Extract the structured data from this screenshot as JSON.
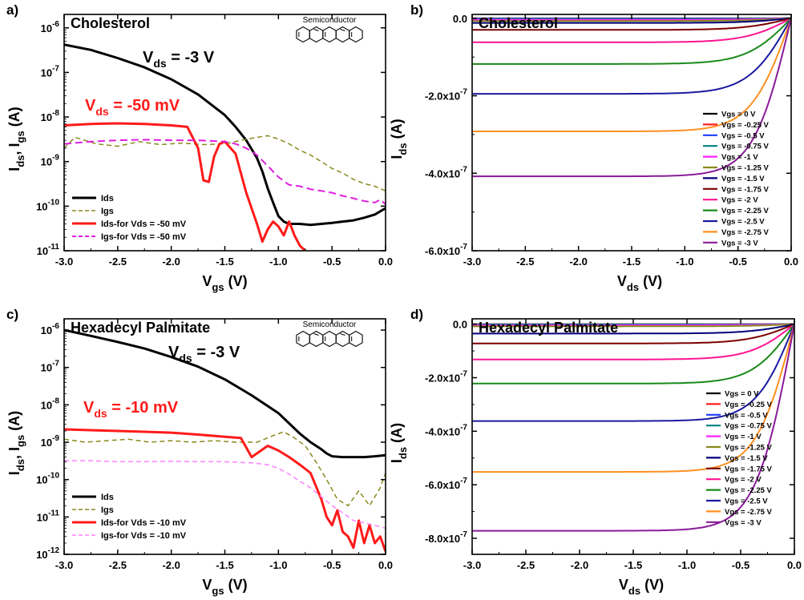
{
  "panels": [
    {
      "letter": "a)",
      "title": "Cholesterol",
      "semiconductor_label": "Semiconductor",
      "annotations": [
        {
          "text": "V",
          "sub": "ds",
          "rest": " = -3 V",
          "color": "#000000"
        },
        {
          "text": "V",
          "sub": "ds",
          "rest": " = -50 mV",
          "color": "#ff1a1a"
        }
      ],
      "xlabel": {
        "main": "V",
        "sub": "gs",
        "rest": " (V)"
      },
      "ylabel": {
        "a": "I",
        "asub": "ds",
        "b": ", I",
        "bsub": "gs",
        "rest": " (A)"
      }
    },
    {
      "letter": "b)",
      "title": "Cholesterol",
      "xlabel": {
        "main": "V",
        "sub": "ds",
        "rest": " (V)"
      },
      "ylabel": {
        "a": "I",
        "asub": "ds",
        "rest": " (A)"
      }
    },
    {
      "letter": "c)",
      "title": "Hexadecyl Palmitate",
      "semiconductor_label": "Semiconductor",
      "annotations": [
        {
          "text": "V",
          "sub": "ds",
          "rest": " = -3 V",
          "color": "#000000"
        },
        {
          "text": "V",
          "sub": "ds",
          "rest": " = -10  mV",
          "color": "#ff1a1a"
        }
      ],
      "xlabel": {
        "main": "V",
        "sub": "gs",
        "rest": " (V)"
      },
      "ylabel": {
        "a": "I",
        "asub": "ds",
        "b": ", I",
        "bsub": "gs",
        "rest": " (A)"
      }
    },
    {
      "letter": "d)",
      "title": "Hexadecyl Palmitate",
      "xlabel": {
        "main": "V",
        "sub": "ds",
        "rest": " (V)"
      },
      "ylabel": {
        "a": "I",
        "asub": "ds",
        "rest": " (A)"
      }
    }
  ],
  "chart_data": [
    {
      "panel": "a",
      "type": "line",
      "title": "Cholesterol",
      "xlabel": "Vgs (V)",
      "ylabel": "Ids, Igs (A)",
      "xlim": [
        -3.0,
        0.0
      ],
      "ylim": [
        1e-11,
        2e-06
      ],
      "yscale": "log",
      "x_ticks": [
        "-3.0",
        "-2.5",
        "-2.0",
        "-1.5",
        "-1.0",
        "-0.5",
        "0.0"
      ],
      "y_ticks": [
        {
          "value": 1e-11,
          "base": "10",
          "exp": "-11"
        },
        {
          "value": 1e-10,
          "base": "10",
          "exp": "-10"
        },
        {
          "value": 1e-09,
          "base": "10",
          "exp": "-9"
        },
        {
          "value": 1e-08,
          "base": "10",
          "exp": "-8"
        },
        {
          "value": 1e-07,
          "base": "10",
          "exp": "-7"
        },
        {
          "value": 1e-06,
          "base": "10",
          "exp": "-6"
        }
      ],
      "legend_position": "bottom-left",
      "series": [
        {
          "name": "Ids",
          "color": "#000000",
          "dash": "solid",
          "width": 3,
          "x": [
            -3.0,
            -2.75,
            -2.5,
            -2.25,
            -2.0,
            -1.75,
            -1.5,
            -1.4,
            -1.3,
            -1.2,
            -1.15,
            -1.1,
            -1.05,
            -1.0,
            -0.95,
            -0.9,
            -0.8,
            -0.7,
            -0.6,
            -0.5,
            -0.4,
            -0.3,
            -0.2,
            -0.1,
            0.0
          ],
          "y": [
            4.2e-07,
            3.2e-07,
            2.1e-07,
            1.3e-07,
            7e-08,
            3.2e-08,
            1.1e-08,
            6e-09,
            3e-09,
            1.2e-09,
            6e-10,
            2.5e-10,
            1.2e-10,
            6e-11,
            4.5e-11,
            4e-11,
            4e-11,
            3.8e-11,
            4e-11,
            4.2e-11,
            4.5e-11,
            4.8e-11,
            5.5e-11,
            6.5e-11,
            9e-11
          ]
        },
        {
          "name": "Igs",
          "color": "#8a8a1e",
          "dash": "dashed",
          "width": 1.5,
          "x": [
            -3.0,
            -2.9,
            -2.7,
            -2.5,
            -2.3,
            -2.1,
            -1.9,
            -1.7,
            -1.5,
            -1.35,
            -1.2,
            -1.1,
            -1.0,
            -0.9,
            -0.8,
            -0.7,
            -0.6,
            -0.5,
            -0.4,
            -0.3,
            -0.2,
            -0.1,
            0.0
          ],
          "y": [
            2e-09,
            3.5e-09,
            2.5e-09,
            2.2e-09,
            2.8e-09,
            2.4e-09,
            2.6e-09,
            2.4e-09,
            2.5e-09,
            3e-09,
            3.5e-09,
            3.8e-09,
            3.2e-09,
            2.5e-09,
            1.8e-09,
            1.4e-09,
            1e-09,
            7e-10,
            5.5e-10,
            4e-10,
            3.2e-10,
            2.8e-10,
            2.2e-10
          ]
        },
        {
          "name": "Ids-for Vds = -50 mV",
          "color": "#ff1a1a",
          "dash": "solid",
          "width": 3,
          "x": [
            -3.0,
            -2.75,
            -2.5,
            -2.25,
            -2.0,
            -1.85,
            -1.75,
            -1.7,
            -1.65,
            -1.6,
            -1.55,
            -1.5,
            -1.4,
            -1.3,
            -1.2,
            -1.15,
            -1.1,
            -1.05,
            -1.0,
            -0.95,
            -0.9,
            -0.85,
            -0.8,
            -0.75
          ],
          "y": [
            6.5e-09,
            7e-09,
            7.2e-09,
            7e-09,
            6.5e-09,
            6e-09,
            2e-09,
            3.8e-10,
            3.5e-10,
            1.3e-09,
            2.5e-09,
            2.8e-09,
            1.5e-09,
            2e-10,
            4e-11,
            1.6e-11,
            3e-11,
            4.5e-11,
            3.5e-11,
            2.2e-11,
            4.5e-11,
            2.2e-11,
            1.3e-11,
            1e-11
          ]
        },
        {
          "name": "Igs-for Vds = -50 mV",
          "color": "#e020e0",
          "dash": "dashed",
          "width": 2,
          "x": [
            -3.0,
            -2.75,
            -2.5,
            -2.25,
            -2.0,
            -1.75,
            -1.5,
            -1.4,
            -1.3,
            -1.2,
            -1.1,
            -1.0,
            -0.9,
            -0.8,
            -0.7,
            -0.6,
            -0.5,
            -0.4,
            -0.3,
            -0.2,
            -0.1,
            -0.05,
            0.0
          ],
          "y": [
            2.5e-09,
            2.8e-09,
            3e-09,
            3.1e-09,
            3e-09,
            3e-09,
            2.8e-09,
            2.5e-09,
            2e-09,
            1.4e-09,
            8e-10,
            4.5e-10,
            3e-10,
            2.8e-10,
            2.4e-10,
            2.2e-10,
            2e-10,
            1.7e-10,
            1.5e-10,
            1.3e-10,
            1.2e-10,
            1.4e-10,
            1.1e-10
          ]
        }
      ]
    },
    {
      "panel": "b",
      "type": "line",
      "title": "Cholesterol",
      "xlabel": "Vds (V)",
      "ylabel": "Ids (A)",
      "xlim": [
        -3.0,
        0.0
      ],
      "ylim": [
        -6e-07,
        1e-08
      ],
      "x_ticks": [
        "-3.0",
        "-2.5",
        "-2.0",
        "-1.5",
        "-1.0",
        "-0.5",
        "0.0"
      ],
      "y_ticks": [
        {
          "value": 0.0,
          "label": "0.0"
        },
        {
          "value": -2e-07,
          "label": "-2.0x10",
          "exp": "-7"
        },
        {
          "value": -4e-07,
          "label": "-4.0x10",
          "exp": "-7"
        },
        {
          "value": -6e-07,
          "label": "-6.0x10",
          "exp": "-7"
        }
      ],
      "legend_position": "right",
      "vgs_series": [
        {
          "name": "Vgs = 0 V",
          "color": "#000000",
          "isat": -2e-10
        },
        {
          "name": "Vgs = -0.25 V",
          "color": "#ff2020",
          "isat": -5e-10
        },
        {
          "name": "Vgs = -0.5 V",
          "color": "#1e3cff",
          "isat": -1e-09
        },
        {
          "name": "Vgs = -0.75 V",
          "color": "#008080",
          "isat": -2e-09
        },
        {
          "name": "Vgs = -1 V",
          "color": "#ff20ff",
          "isat": -4e-09
        },
        {
          "name": "Vgs = -1.25 V",
          "color": "#8a8a1e",
          "isat": -7e-09
        },
        {
          "name": "Vgs = -1.5 V",
          "color": "#00007a",
          "isat": -1.2e-08
        },
        {
          "name": "Vgs = -1.75 V",
          "color": "#7a0000",
          "isat": -3e-08
        },
        {
          "name": "Vgs = -2 V",
          "color": "#ff1493",
          "isat": -6.2e-08
        },
        {
          "name": "Vgs = -2.25 V",
          "color": "#1a8a1a",
          "isat": -1.18e-07
        },
        {
          "name": "Vgs = -2.5 V",
          "color": "#1a1aa0",
          "isat": -1.95e-07
        },
        {
          "name": "Vgs = -2.75 V",
          "color": "#ff9020",
          "isat": -2.92e-07
        },
        {
          "name": "Vgs = -3 V",
          "color": "#8a1a9a",
          "isat": -4.08e-07
        }
      ]
    },
    {
      "panel": "c",
      "type": "line",
      "title": "Hexadecyl Palmitate",
      "xlabel": "Vgs (V)",
      "ylabel": "Ids, Igs (A)",
      "xlim": [
        -3.0,
        0.0
      ],
      "ylim": [
        1e-12,
        2e-06
      ],
      "yscale": "log",
      "x_ticks": [
        "-3.0",
        "-2.5",
        "-2.0",
        "-1.5",
        "-1.0",
        "-0.5",
        "0.0"
      ],
      "y_ticks": [
        {
          "value": 1e-12,
          "base": "10",
          "exp": "-12"
        },
        {
          "value": 1e-11,
          "base": "10",
          "exp": "-11"
        },
        {
          "value": 1e-10,
          "base": "10",
          "exp": "-10"
        },
        {
          "value": 1e-09,
          "base": "10",
          "exp": "-9"
        },
        {
          "value": 1e-08,
          "base": "10",
          "exp": "-8"
        },
        {
          "value": 1e-07,
          "base": "10",
          "exp": "-7"
        },
        {
          "value": 1e-06,
          "base": "10",
          "exp": "-6"
        }
      ],
      "legend_position": "bottom-left",
      "series": [
        {
          "name": "Ids",
          "color": "#000000",
          "dash": "solid",
          "width": 3,
          "x": [
            -3.0,
            -2.75,
            -2.5,
            -2.25,
            -2.0,
            -1.75,
            -1.5,
            -1.25,
            -1.0,
            -0.9,
            -0.8,
            -0.7,
            -0.6,
            -0.55,
            -0.5,
            -0.4,
            -0.3,
            -0.2,
            -0.1,
            0.0
          ],
          "y": [
            1e-06,
            7e-07,
            4.8e-07,
            3.2e-07,
            1.9e-07,
            1.05e-07,
            4.8e-08,
            1.8e-08,
            6e-09,
            3.2e-09,
            1.7e-09,
            1e-09,
            6.5e-10,
            5e-10,
            4.2e-10,
            4e-10,
            4e-10,
            4e-10,
            4.2e-10,
            4.5e-10
          ]
        },
        {
          "name": "Igs",
          "color": "#8a8a1e",
          "dash": "dashed",
          "width": 1.5,
          "x": [
            -3.0,
            -2.8,
            -2.6,
            -2.4,
            -2.2,
            -2.0,
            -1.8,
            -1.6,
            -1.4,
            -1.2,
            -1.05,
            -0.95,
            -0.85,
            -0.75,
            -0.65,
            -0.55,
            -0.45,
            -0.35,
            -0.25,
            -0.15,
            -0.05,
            0.0
          ],
          "y": [
            1.2e-09,
            1e-09,
            1.1e-09,
            1.2e-09,
            1e-09,
            1.1e-09,
            1e-09,
            1.1e-09,
            1e-09,
            1e-09,
            1.5e-09,
            1.9e-09,
            1.3e-09,
            8e-10,
            3e-10,
            1e-10,
            3e-11,
            2e-11,
            5e-11,
            2e-11,
            6e-11,
            1.5e-10
          ]
        },
        {
          "name": "Ids-for Vds = -10 mV",
          "color": "#ff1a1a",
          "dash": "solid",
          "width": 3,
          "x": [
            -3.0,
            -2.75,
            -2.5,
            -2.25,
            -2.0,
            -1.75,
            -1.5,
            -1.35,
            -1.25,
            -1.1,
            -1.0,
            -0.9,
            -0.8,
            -0.7,
            -0.6,
            -0.55,
            -0.5,
            -0.45,
            -0.4,
            -0.35,
            -0.3,
            -0.25,
            -0.2,
            -0.15,
            -0.1,
            -0.05,
            0.0
          ],
          "y": [
            2.2e-09,
            2.1e-09,
            2e-09,
            1.9e-09,
            1.8e-09,
            1.6e-09,
            1.4e-09,
            1.3e-09,
            4e-10,
            8e-10,
            6e-10,
            4e-10,
            2.5e-10,
            1.5e-10,
            3e-11,
            1e-11,
            6e-12,
            1.5e-11,
            4e-12,
            3e-12,
            1.5e-12,
            8e-12,
            2e-12,
            6e-12,
            2e-12,
            3e-12,
            1.2e-12
          ]
        },
        {
          "name": "Igs-for Vds = -10 mV",
          "color": "#ff80ff",
          "dash": "dashed",
          "width": 1.5,
          "x": [
            -3.0,
            -2.75,
            -2.5,
            -2.25,
            -2.0,
            -1.75,
            -1.5,
            -1.25,
            -1.1,
            -1.0,
            -0.9,
            -0.8,
            -0.7,
            -0.6,
            -0.5,
            -0.4,
            -0.3,
            -0.2,
            -0.1,
            0.0
          ],
          "y": [
            3.2e-10,
            3.2e-10,
            3e-10,
            3e-10,
            3.1e-10,
            3e-10,
            3e-10,
            2.8e-10,
            2.5e-10,
            2e-10,
            1.4e-10,
            9e-11,
            6e-11,
            3.5e-11,
            2e-11,
            1.3e-11,
            8e-12,
            7e-12,
            6e-12,
            5e-12
          ]
        }
      ]
    },
    {
      "panel": "d",
      "type": "line",
      "title": "Hexadecyl Palmitate",
      "xlabel": "Vds (V)",
      "ylabel": "Ids (A)",
      "xlim": [
        -3.0,
        0.0
      ],
      "ylim": [
        -8.6e-07,
        2e-08
      ],
      "x_ticks": [
        "-3.0",
        "-2.5",
        "-2.0",
        "-1.5",
        "-1.0",
        "-0.5",
        "0.0"
      ],
      "y_ticks": [
        {
          "value": 0.0,
          "label": "0.0"
        },
        {
          "value": -2e-07,
          "label": "-2.0x10",
          "exp": "-7"
        },
        {
          "value": -4e-07,
          "label": "-4.0x10",
          "exp": "-7"
        },
        {
          "value": -6e-07,
          "label": "-6.0x10",
          "exp": "-7"
        },
        {
          "value": -8e-07,
          "label": "-8.0x10",
          "exp": "-7"
        }
      ],
      "legend_position": "right",
      "vgs_series": [
        {
          "name": "Vgs = 0 V",
          "color": "#000000",
          "isat": -3e-10
        },
        {
          "name": "Vgs = -0.25 V",
          "color": "#ff2020",
          "isat": -6e-10
        },
        {
          "name": "Vgs = -0.5 V",
          "color": "#1e3cff",
          "isat": -1e-09
        },
        {
          "name": "Vgs = -0.75 V",
          "color": "#008080",
          "isat": -2e-09
        },
        {
          "name": "Vgs = -1 V",
          "color": "#ff20ff",
          "isat": -4e-09
        },
        {
          "name": "Vgs = -1.25 V",
          "color": "#8a8a1e",
          "isat": -8e-09
        },
        {
          "name": "Vgs = -1.5 V",
          "color": "#00007a",
          "isat": -3.5e-08
        },
        {
          "name": "Vgs = -1.75 V",
          "color": "#7a0000",
          "isat": -7.2e-08
        },
        {
          "name": "Vgs = -2 V",
          "color": "#ff1493",
          "isat": -1.32e-07
        },
        {
          "name": "Vgs = -2.25 V",
          "color": "#1a8a1a",
          "isat": -2.22e-07
        },
        {
          "name": "Vgs = -2.5 V",
          "color": "#1a1aa0",
          "isat": -3.62e-07
        },
        {
          "name": "Vgs = -2.75 V",
          "color": "#ff9020",
          "isat": -5.52e-07
        },
        {
          "name": "Vgs = -3 V",
          "color": "#8a1a9a",
          "isat": -7.72e-07
        }
      ]
    }
  ]
}
